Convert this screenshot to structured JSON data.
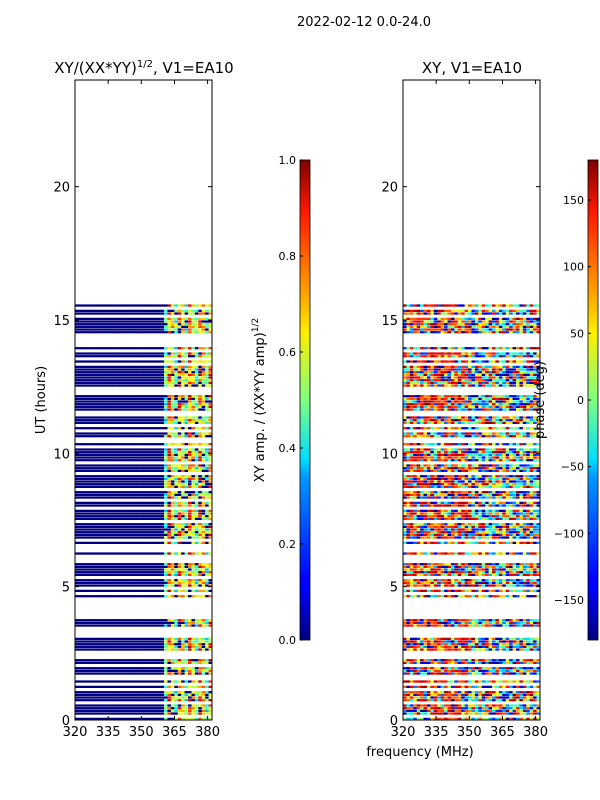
{
  "figure": {
    "suptitle": "2022-02-12 0.0-24.0",
    "shared_xlabel": "frequency (MHz)"
  },
  "chart_data": [
    {
      "type": "heatmap",
      "title_main": "XY/(XX*YY)",
      "title_sup": "1/2",
      "title_rest": ", V1=EA10",
      "xlabel": "",
      "ylabel": "UT (hours)",
      "xlim": [
        320,
        382
      ],
      "ylim": [
        0,
        24
      ],
      "xticks": [
        "320",
        "335",
        "350",
        "365",
        "380"
      ],
      "xtick_values": [
        320,
        335,
        350,
        365,
        380
      ],
      "yticks": [
        "0",
        "5",
        "10",
        "15",
        "20"
      ],
      "ytick_values": [
        0,
        5,
        10,
        15,
        20
      ],
      "data_ut_range": [
        0,
        15.7
      ],
      "note": "normalized XY amplitude; mostly ~0 (dark blue) below ~360 MHz, higher values (0.3-0.8) between ~362 and ~380 MHz"
    },
    {
      "type": "heatmap",
      "title": "XY, V1=EA10",
      "xlabel": "frequency (MHz)",
      "ylabel": "",
      "xlim": [
        320,
        382
      ],
      "ylim": [
        0,
        24
      ],
      "xticks": [
        "320",
        "335",
        "350",
        "365",
        "380"
      ],
      "xtick_values": [
        320,
        335,
        350,
        365,
        380
      ],
      "yticks": [
        "0",
        "5",
        "10",
        "15",
        "20"
      ],
      "ytick_values": [
        0,
        5,
        10,
        15,
        20
      ],
      "data_ut_range": [
        0,
        15.7
      ],
      "note": "XY phase in degrees, noisy across -180 to 180"
    }
  ],
  "colorbars": [
    {
      "label_main": "XY amp. / (XX*YY amp)",
      "label_sup": "1/2",
      "range": [
        0,
        1
      ],
      "ticks": [
        "0.0",
        "0.2",
        "0.4",
        "0.6",
        "0.8",
        "1.0"
      ],
      "tick_values": [
        0,
        0.2,
        0.4,
        0.6,
        0.8,
        1.0
      ],
      "colormap": "jet"
    },
    {
      "label": "phase (deg)",
      "range": [
        -180,
        180
      ],
      "ticks": [
        "−150",
        "−100",
        "−50",
        "0",
        "50",
        "100",
        "150"
      ],
      "tick_values": [
        -150,
        -100,
        -50,
        0,
        50,
        100,
        150
      ],
      "colormap": "jet"
    }
  ]
}
